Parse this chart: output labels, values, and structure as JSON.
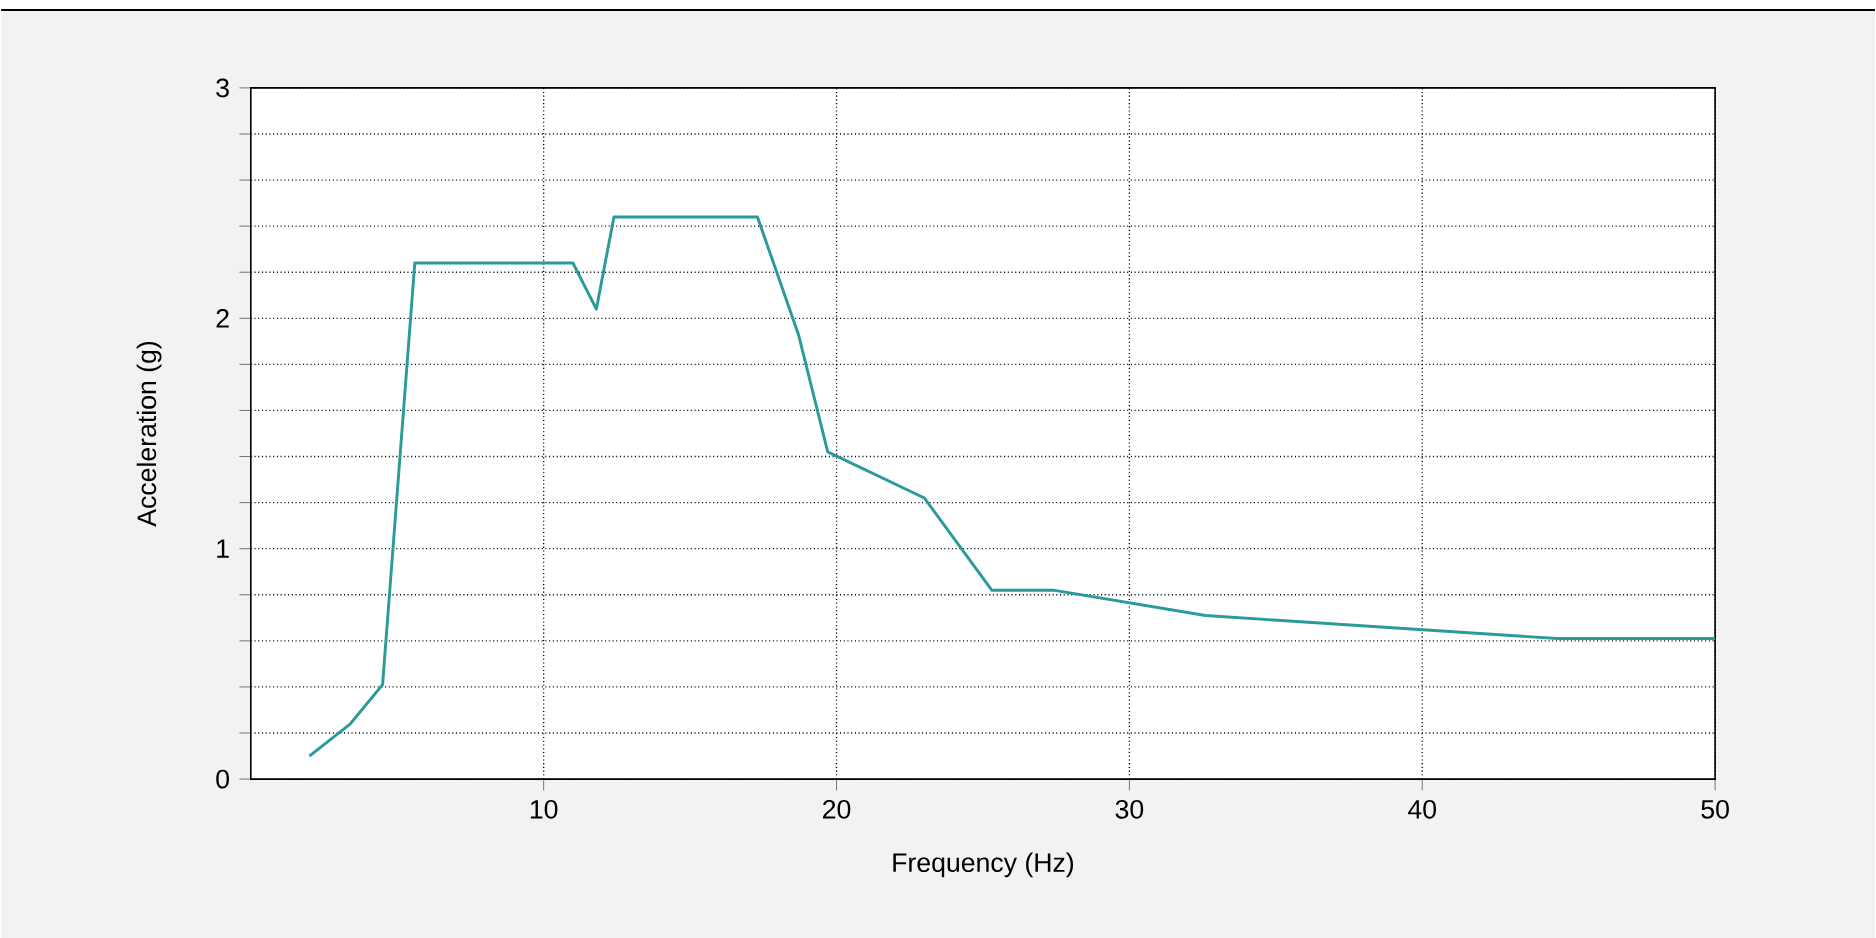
{
  "chart_data": {
    "type": "line",
    "xlabel": "Frequency (Hz)",
    "ylabel": "Acceleration (g)",
    "x": [
      2.0,
      3.4,
      4.5,
      5.6,
      11.0,
      11.8,
      12.4,
      17.3,
      18.7,
      19.7,
      23.0,
      25.3,
      27.4,
      32.6,
      44.6,
      50
    ],
    "series": [
      {
        "color": "#2a9a9a",
        "values": [
          0.1,
          0.24,
          0.41,
          2.24,
          2.24,
          2.04,
          2.44,
          2.44,
          1.93,
          1.42,
          1.22,
          0.82,
          0.82,
          0.71,
          0.61,
          0.61
        ]
      }
    ],
    "xlim": [
      0,
      50
    ],
    "ylim": [
      0,
      3
    ],
    "xticks": [
      10,
      20,
      30,
      40,
      50
    ],
    "yticks": [
      0,
      {
        "value": 0.2,
        "label": null
      },
      {
        "value": 0.4,
        "label": null
      },
      {
        "value": 0.6,
        "label": null
      },
      {
        "value": 0.8,
        "label": null
      },
      1,
      {
        "value": 1.2,
        "label": null
      },
      {
        "value": 1.4,
        "label": null
      },
      {
        "value": 1.6,
        "label": null
      },
      {
        "value": 1.8,
        "label": null
      },
      2,
      {
        "value": 2.2,
        "label": null
      },
      {
        "value": 2.4,
        "label": null
      },
      {
        "value": 2.6,
        "label": null
      },
      {
        "value": 2.8,
        "label": null
      },
      3
    ],
    "grid": true,
    "marker": "none",
    "line_style": "solid"
  }
}
